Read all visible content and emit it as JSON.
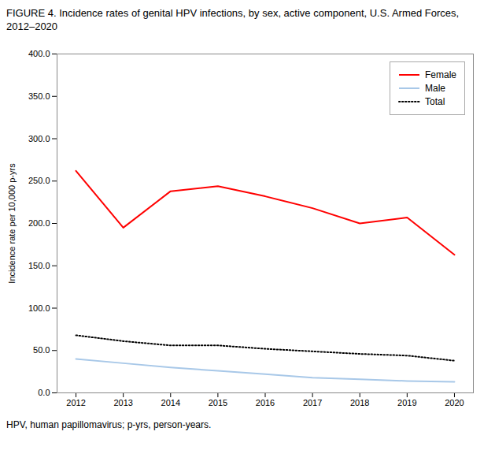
{
  "chart_data": {
    "type": "line",
    "title": "FIGURE 4. Incidence rates of genital HPV infections, by sex, active component, U.S. Armed Forces, 2012–2020",
    "ylabel": "Incidence rate per 10,000 p-yrs",
    "annotations": [
      "HPV, human papillomavirus; p-yrs, person-years."
    ],
    "x": [
      2012,
      2013,
      2014,
      2015,
      2016,
      2017,
      2018,
      2019,
      2020
    ],
    "xlim": [
      2011.6,
      2020.4
    ],
    "xticks": [
      2012,
      2013,
      2014,
      2015,
      2016,
      2017,
      2018,
      2019,
      2020
    ],
    "ylim": [
      0,
      400
    ],
    "yticks": [
      {
        "value": 0,
        "label": "0.0"
      },
      {
        "value": 50,
        "label": "50.0"
      },
      {
        "value": 100,
        "label": "100.0"
      },
      {
        "value": 150,
        "label": "150.0"
      },
      {
        "value": 200,
        "label": "200.0"
      },
      {
        "value": 250,
        "label": "250.0"
      },
      {
        "value": 300,
        "label": "300.0"
      },
      {
        "value": 350,
        "label": "350.0"
      },
      {
        "value": 400,
        "label": "400.0"
      }
    ],
    "grid": false,
    "legend": "upper right",
    "series": [
      {
        "name": "Female",
        "color": "#ff0000",
        "line_style": "solid",
        "values": [
          262,
          195,
          238,
          244,
          232,
          218,
          200,
          207,
          163
        ]
      },
      {
        "name": "Male",
        "color": "#a8c8e8",
        "line_style": "solid",
        "values": [
          40,
          35,
          30,
          26,
          22,
          18,
          16,
          14,
          13
        ]
      },
      {
        "name": "Total",
        "color": "#000000",
        "line_style": "dotted",
        "values": [
          68,
          61,
          56,
          56,
          52,
          49,
          46,
          44,
          38
        ]
      }
    ]
  }
}
